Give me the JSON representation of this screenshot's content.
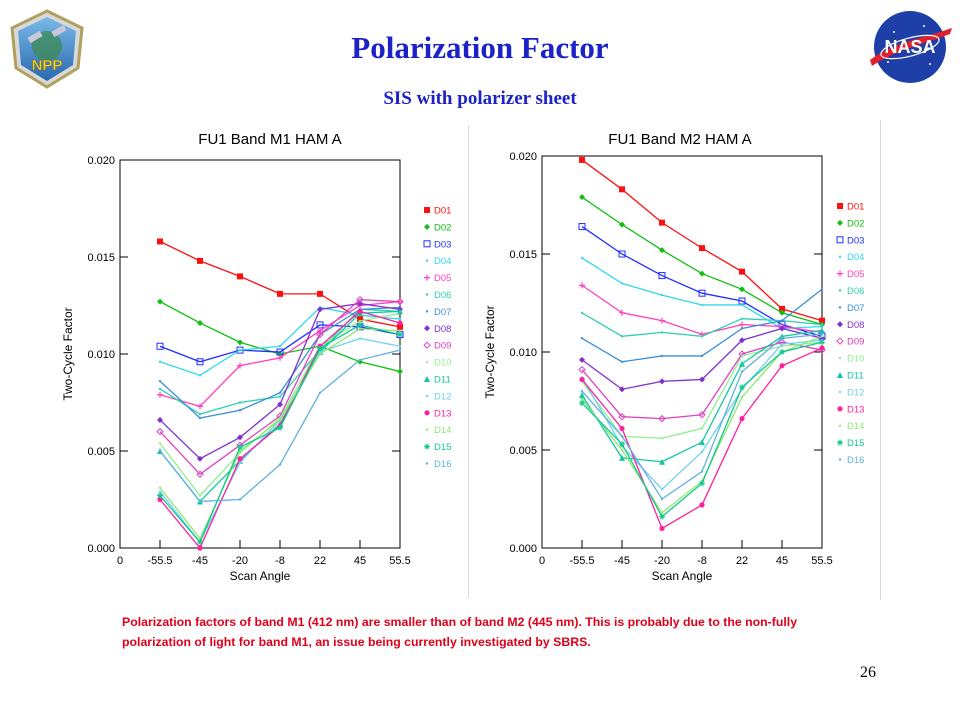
{
  "slide": {
    "title": "Polarization  Factor",
    "subtitle": "SIS with polarizer sheet",
    "caption": "Polarization factors of band M1 (412 nm) are smaller than of band M2 (445 nm). This is probably due to the non-fully polarization of light for band M1, an issue being currently investigated by SBRS.",
    "page_number": "26",
    "logos": {
      "left": "NPP",
      "right": "NASA"
    }
  },
  "chart_data": [
    {
      "type": "line",
      "title": "FU1 Band M1 HAM A",
      "xlabel": "Scan Angle",
      "ylabel": "Two-Cycle Factor",
      "x_tick_labels": [
        "0",
        "-55.5",
        "-45",
        "-20",
        "-8",
        "22",
        "45",
        "55.5"
      ],
      "x_categories": [
        "-55.5",
        "-45",
        "-20",
        "-8",
        "22",
        "45",
        "55.5"
      ],
      "y_tick_labels": [
        "0.000",
        "0.005",
        "0.010",
        "0.015",
        "0.020"
      ],
      "ylim": [
        0,
        0.02
      ],
      "legend_position": "right",
      "series": [
        {
          "name": "D01",
          "color": "#ff1010",
          "marker": "square-filled",
          "values": [
            0.0158,
            0.0148,
            0.014,
            0.0131,
            0.0131,
            0.0118,
            0.0114
          ]
        },
        {
          "name": "D02",
          "color": "#10c010",
          "marker": "diamond-filled",
          "values": [
            0.0127,
            0.0116,
            0.0106,
            0.01,
            0.0104,
            0.0096,
            0.0091
          ]
        },
        {
          "name": "D03",
          "color": "#2030ff",
          "marker": "square-open",
          "values": [
            0.0104,
            0.0096,
            0.0102,
            0.0101,
            0.0115,
            0.0114,
            0.011
          ]
        },
        {
          "name": "D04",
          "color": "#30d8f0",
          "marker": "none",
          "values": [
            0.0096,
            0.0089,
            0.0102,
            0.0104,
            0.0124,
            0.012,
            0.0118
          ]
        },
        {
          "name": "D05",
          "color": "#ff40c0",
          "marker": "plus",
          "values": [
            0.0079,
            0.0073,
            0.0094,
            0.0098,
            0.0112,
            0.0125,
            0.0127
          ]
        },
        {
          "name": "D06",
          "color": "#30d0b0",
          "marker": "none",
          "values": [
            0.0082,
            0.0069,
            0.0075,
            0.0078,
            0.0102,
            0.0123,
            0.0122
          ]
        },
        {
          "name": "D07",
          "color": "#3a90d8",
          "marker": "none",
          "values": [
            0.0086,
            0.0067,
            0.0071,
            0.008,
            0.011,
            0.0123,
            0.0124
          ]
        },
        {
          "name": "D08",
          "color": "#8030d0",
          "marker": "diamond-filled",
          "values": [
            0.0066,
            0.0046,
            0.0057,
            0.0074,
            0.0123,
            0.0126,
            0.0123
          ]
        },
        {
          "name": "D09",
          "color": "#e040c0",
          "marker": "diamond-open",
          "values": [
            0.006,
            0.0038,
            0.0053,
            0.0068,
            0.011,
            0.0128,
            0.0127
          ]
        },
        {
          "name": "D10",
          "color": "#90f090",
          "marker": "none",
          "values": [
            0.0054,
            0.0027,
            0.0049,
            0.0067,
            0.0104,
            0.0117,
            0.0121
          ]
        },
        {
          "name": "D11",
          "color": "#10c8a0",
          "marker": "triangle-filled",
          "values": [
            0.005,
            0.0024,
            0.0045,
            0.0064,
            0.0101,
            0.0121,
            0.0122
          ]
        },
        {
          "name": "D12",
          "color": "#70d0f0",
          "marker": "none",
          "values": [
            0.0029,
            0.0003,
            0.0044,
            0.0066,
            0.0101,
            0.0108,
            0.0104
          ]
        },
        {
          "name": "D13",
          "color": "#ff20a0",
          "marker": "circle-filled",
          "values": [
            0.0025,
            0.0,
            0.0046,
            0.0063,
            0.0104,
            0.0122,
            0.0116
          ]
        },
        {
          "name": "D14",
          "color": "#90e870",
          "marker": "none",
          "values": [
            0.0031,
            0.0005,
            0.005,
            0.0066,
            0.01,
            0.0113,
            0.0112
          ]
        },
        {
          "name": "D15",
          "color": "#10c890",
          "marker": "asterisk",
          "values": [
            0.0027,
            0.0003,
            0.0052,
            0.0062,
            0.0103,
            0.0115,
            0.011
          ]
        },
        {
          "name": "D16",
          "color": "#60b0e0",
          "marker": "none",
          "values": [
            0.005,
            0.0024,
            0.0025,
            0.0043,
            0.008,
            0.0097,
            0.0102
          ]
        }
      ]
    },
    {
      "type": "line",
      "title": "FU1 Band M2 HAM A",
      "xlabel": "Scan Angle",
      "ylabel": "Two-Cycle Factor",
      "x_tick_labels": [
        "0",
        "-55.5",
        "-45",
        "-20",
        "-8",
        "22",
        "45",
        "55.5"
      ],
      "x_categories": [
        "-55.5",
        "-45",
        "-20",
        "-8",
        "22",
        "45",
        "55.5"
      ],
      "y_tick_labels": [
        "0.000",
        "0.005",
        "0.010",
        "0.015",
        "0.020"
      ],
      "ylim": [
        0,
        0.02
      ],
      "legend_position": "right",
      "series": [
        {
          "name": "D01",
          "color": "#ff1010",
          "marker": "square-filled",
          "values": [
            0.0198,
            0.0183,
            0.0166,
            0.0153,
            0.0141,
            0.0122,
            0.0116
          ]
        },
        {
          "name": "D02",
          "color": "#10c010",
          "marker": "diamond-filled",
          "values": [
            0.0179,
            0.0165,
            0.0152,
            0.014,
            0.0132,
            0.012,
            0.0114
          ]
        },
        {
          "name": "D03",
          "color": "#2030ff",
          "marker": "square-open",
          "values": [
            0.0164,
            0.015,
            0.0139,
            0.013,
            0.0126,
            0.0114,
            0.0108
          ]
        },
        {
          "name": "D04",
          "color": "#30d8f0",
          "marker": "none",
          "values": [
            0.0148,
            0.0135,
            0.0129,
            0.0124,
            0.0124,
            0.0112,
            0.0113
          ]
        },
        {
          "name": "D05",
          "color": "#ff40c0",
          "marker": "plus",
          "values": [
            0.0134,
            0.012,
            0.0116,
            0.0109,
            0.0114,
            0.0113,
            0.011
          ]
        },
        {
          "name": "D06",
          "color": "#30d0b0",
          "marker": "none",
          "values": [
            0.012,
            0.0108,
            0.011,
            0.0108,
            0.0117,
            0.0116,
            0.0114
          ]
        },
        {
          "name": "D07",
          "color": "#3a90d8",
          "marker": "none",
          "values": [
            0.0107,
            0.0095,
            0.0098,
            0.0098,
            0.0112,
            0.0116,
            0.0132
          ]
        },
        {
          "name": "D08",
          "color": "#8030d0",
          "marker": "diamond-filled",
          "values": [
            0.0096,
            0.0081,
            0.0085,
            0.0086,
            0.0106,
            0.0112,
            0.0107
          ]
        },
        {
          "name": "D09",
          "color": "#e040c0",
          "marker": "diamond-open",
          "values": [
            0.0091,
            0.0067,
            0.0066,
            0.0068,
            0.0099,
            0.0105,
            0.0101
          ]
        },
        {
          "name": "D10",
          "color": "#90f090",
          "marker": "none",
          "values": [
            0.0085,
            0.0057,
            0.0056,
            0.0061,
            0.0098,
            0.0103,
            0.0105
          ]
        },
        {
          "name": "D11",
          "color": "#10c8a0",
          "marker": "triangle-filled",
          "values": [
            0.0078,
            0.0046,
            0.0044,
            0.0054,
            0.0094,
            0.0108,
            0.0111
          ]
        },
        {
          "name": "D12",
          "color": "#70d0f0",
          "marker": "none",
          "values": [
            0.0087,
            0.0052,
            0.003,
            0.0049,
            0.0081,
            0.0104,
            0.0106
          ]
        },
        {
          "name": "D13",
          "color": "#ff20a0",
          "marker": "circle-filled",
          "values": [
            0.0086,
            0.0061,
            0.001,
            0.0022,
            0.0066,
            0.0093,
            0.0102
          ]
        },
        {
          "name": "D14",
          "color": "#90e870",
          "marker": "none",
          "values": [
            0.0076,
            0.005,
            0.0018,
            0.0034,
            0.0077,
            0.01,
            0.0108
          ]
        },
        {
          "name": "D15",
          "color": "#10c890",
          "marker": "asterisk",
          "values": [
            0.0074,
            0.0053,
            0.0016,
            0.0033,
            0.0082,
            0.01,
            0.0105
          ]
        },
        {
          "name": "D16",
          "color": "#60b0e0",
          "marker": "none",
          "values": [
            0.008,
            0.0057,
            0.0025,
            0.0039,
            0.009,
            0.0107,
            0.0109
          ]
        }
      ]
    }
  ]
}
